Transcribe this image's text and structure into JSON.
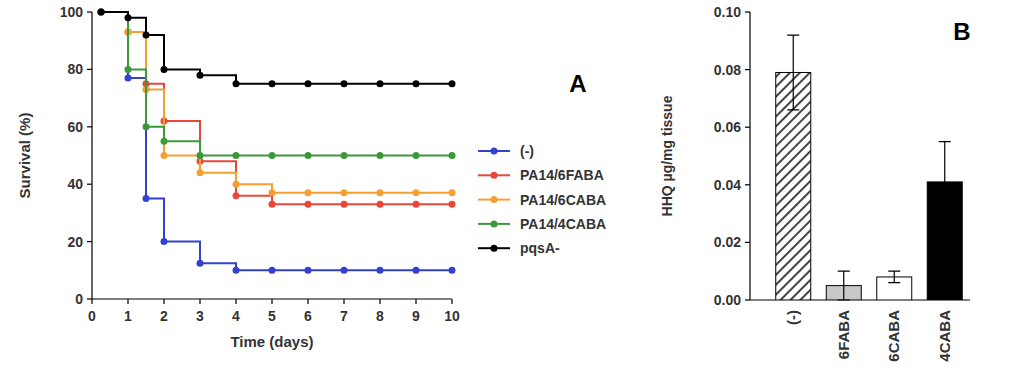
{
  "chart_data": [
    {
      "type": "line",
      "annotation": "A",
      "x_label": "Time (days)",
      "y_label": "Survival (%)",
      "x": [
        0.25,
        1,
        1.5,
        2,
        3,
        4,
        5,
        6,
        7,
        8,
        9,
        10
      ],
      "series": [
        {
          "name": "(-)",
          "color": "#3340d0",
          "marker": "circle",
          "line_style": "step",
          "values": [
            100,
            77,
            35,
            20,
            12.5,
            10,
            10,
            10,
            10,
            10,
            10,
            10
          ]
        },
        {
          "name": "PA14/6FABA",
          "color": "#e8473a",
          "marker": "circle",
          "line_style": "step",
          "values": [
            100,
            93,
            75,
            62,
            48,
            36,
            33,
            33,
            33,
            33,
            33,
            33
          ]
        },
        {
          "name": "PA14/6CABA",
          "color": "#f4a030",
          "marker": "circle",
          "line_style": "step",
          "values": [
            100,
            93,
            73,
            50,
            44,
            40,
            37,
            37,
            37,
            37,
            37,
            37
          ]
        },
        {
          "name": "PA14/4CABA",
          "color": "#3a9a3a",
          "marker": "circle",
          "line_style": "step",
          "values": [
            100,
            80,
            60,
            55,
            50,
            50,
            50,
            50,
            50,
            50,
            50,
            50
          ]
        },
        {
          "name": "pqsA-",
          "color": "#000000",
          "marker": "circle",
          "line_style": "step",
          "values": [
            100,
            98,
            92,
            80,
            78,
            75,
            75,
            75,
            75,
            75,
            75,
            75
          ]
        }
      ],
      "xlim": [
        0,
        10
      ],
      "xticks": [
        0,
        1,
        2,
        3,
        4,
        5,
        6,
        7,
        8,
        9,
        10
      ],
      "ylim": [
        0,
        100
      ],
      "yticks": [
        0,
        20,
        40,
        60,
        80,
        100
      ],
      "legend": "right"
    },
    {
      "type": "bar",
      "annotation": "B",
      "y_label": "HHQ µg/mg tissue",
      "categories": [
        "(-)",
        "6FABA",
        "6CABA",
        "4CABA"
      ],
      "values": [
        0.079,
        0.005,
        0.008,
        0.041
      ],
      "errors": [
        0.013,
        0.005,
        0.002,
        0.014
      ],
      "colors": [
        "#444444",
        "#c8c8c8",
        "#ffffff",
        "#000000"
      ],
      "ylim": [
        0,
        0.1
      ],
      "yticks": [
        {
          "value": 0,
          "label": "0.00"
        },
        {
          "value": 0.02,
          "label": "0.02"
        },
        {
          "value": 0.04,
          "label": "0.04"
        },
        {
          "value": 0.06,
          "label": "0.06"
        },
        {
          "value": 0.08,
          "label": "0.08"
        },
        {
          "value": 0.1,
          "label": "0.10"
        }
      ]
    }
  ]
}
